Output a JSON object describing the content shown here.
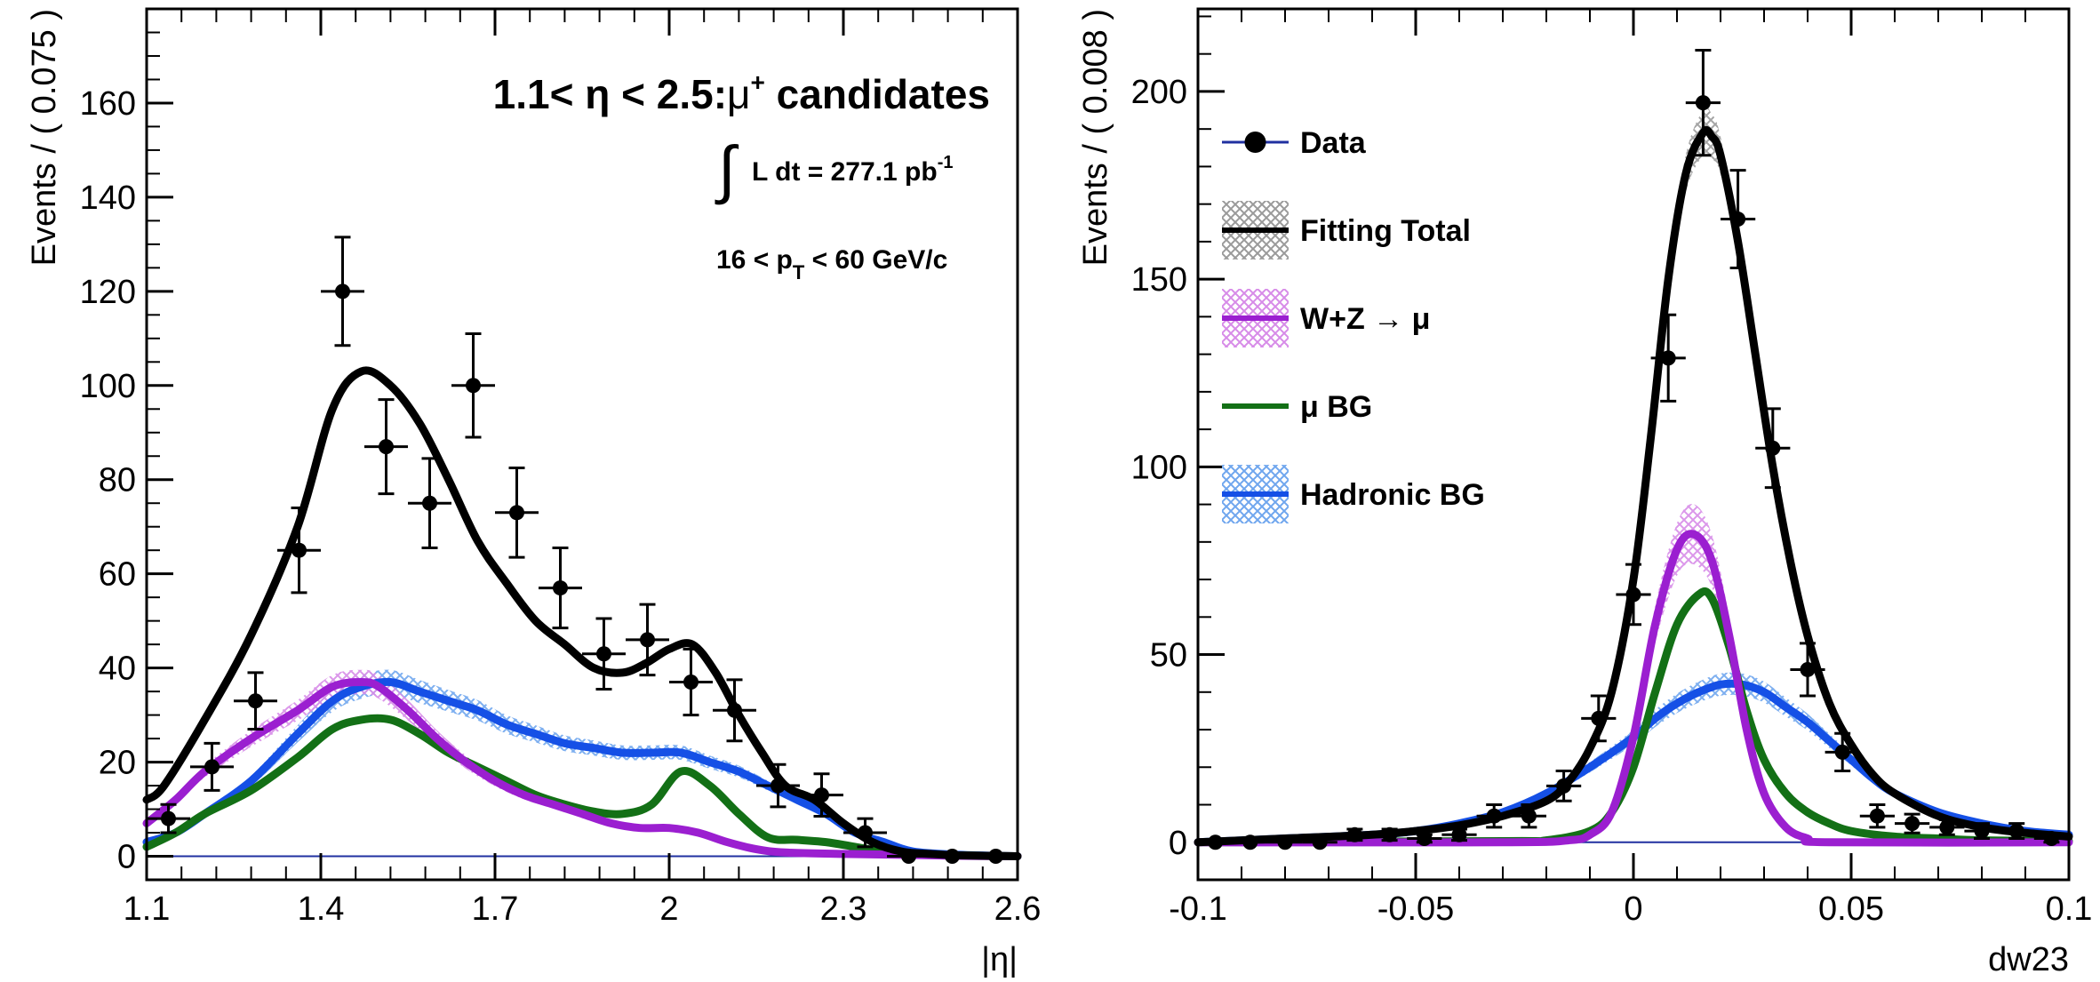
{
  "colors": {
    "data": "#000000",
    "fitting_total": "#000000",
    "wz": "#9b1fd0",
    "mu_bg": "#137016",
    "hadronic_bg": "#1550e6",
    "hadronic_band": "#6fa6ee",
    "wz_band": "#d78be8",
    "total_band": "#9a9a9a",
    "zero_line": "#2030a0"
  },
  "chart_data": [
    {
      "type": "scatter",
      "panel": "left",
      "xlabel": "|η|",
      "ylabel": "Events / ( 0.075 )",
      "xlim": [
        1.1,
        2.6
      ],
      "ylim": [
        -5,
        180
      ],
      "x_ticks": [
        1.1,
        1.4,
        1.7,
        2.0,
        2.3,
        2.6
      ],
      "x_tick_labels": [
        "1.1",
        "1.4",
        "1.7",
        "2",
        "2.3",
        "2.6"
      ],
      "y_ticks": [
        0,
        20,
        40,
        60,
        80,
        100,
        120,
        140,
        160
      ],
      "y_tick_labels": [
        "0",
        "20",
        "40",
        "60",
        "80",
        "100",
        "120",
        "140",
        "160"
      ],
      "annotations": {
        "title_prefix": "1.1< η < 2.5:",
        "title_mu": "μ",
        "title_sup": "+",
        "title_suffix": " candidates",
        "integral": "∫",
        "lumi_text": "L dt = 277.1 pb",
        "lumi_sup": "-1",
        "pt_prefix": "16 < p",
        "pt_sub": "T",
        "pt_suffix": " < 60 GeV/c"
      },
      "bin_half_width": 0.0375,
      "data": {
        "x": [
          1.1375,
          1.2125,
          1.2875,
          1.3625,
          1.4375,
          1.5125,
          1.5875,
          1.6625,
          1.7375,
          1.8125,
          1.8875,
          1.9625,
          2.0375,
          2.1125,
          2.1875,
          2.2625,
          2.3375,
          2.4125,
          2.4875,
          2.5625
        ],
        "y": [
          8,
          19,
          33,
          65,
          120,
          87,
          75,
          100,
          73,
          57,
          43,
          46,
          37,
          31,
          15,
          13,
          5,
          0,
          0,
          0
        ],
        "err": [
          3,
          5,
          6,
          9,
          11.5,
          10,
          9.5,
          11,
          9.5,
          8.5,
          7.5,
          7.5,
          7,
          6.5,
          4.5,
          4.5,
          3,
          0,
          0,
          0
        ]
      },
      "curves": [
        {
          "key": "fitting_total",
          "x": [
            1.1,
            1.13,
            1.2,
            1.28,
            1.36,
            1.42,
            1.47,
            1.52,
            1.57,
            1.62,
            1.67,
            1.72,
            1.77,
            1.82,
            1.87,
            1.92,
            1.96,
            2.0,
            2.04,
            2.08,
            2.12,
            2.16,
            2.2,
            2.25,
            2.3,
            2.35,
            2.4,
            2.45,
            2.5,
            2.6
          ],
          "y": [
            12,
            15,
            29,
            47,
            70,
            95,
            103,
            100,
            92,
            80,
            67,
            58,
            50,
            45,
            40,
            39,
            41,
            44,
            45,
            39,
            30,
            22,
            15,
            12,
            7,
            3,
            1,
            0.5,
            0.2,
            0
          ]
        },
        {
          "key": "hadronic_bg",
          "x": [
            1.1,
            1.15,
            1.2,
            1.28,
            1.36,
            1.42,
            1.47,
            1.52,
            1.57,
            1.62,
            1.67,
            1.72,
            1.77,
            1.82,
            1.87,
            1.92,
            1.97,
            2.02,
            2.07,
            2.12,
            2.17,
            2.22,
            2.27,
            2.32,
            2.37,
            2.42,
            2.5,
            2.6
          ],
          "y": [
            3,
            5,
            9,
            16,
            26,
            33,
            36,
            37,
            35,
            33,
            31,
            28,
            26,
            24,
            23,
            22,
            22,
            22,
            20,
            18,
            15,
            12,
            9,
            5,
            3,
            1,
            0.3,
            0
          ]
        },
        {
          "key": "wz",
          "x": [
            1.1,
            1.15,
            1.2,
            1.28,
            1.36,
            1.42,
            1.47,
            1.5,
            1.55,
            1.6,
            1.65,
            1.7,
            1.75,
            1.8,
            1.85,
            1.9,
            1.95,
            2.0,
            2.05,
            2.1,
            2.15,
            2.2,
            2.3,
            2.4,
            2.5,
            2.6
          ],
          "y": [
            7,
            12,
            18,
            25,
            31,
            36,
            37,
            36,
            31,
            25,
            20,
            16,
            13,
            11,
            9,
            7,
            6,
            6,
            5,
            3,
            1.5,
            0.8,
            0.5,
            0.3,
            0.1,
            0
          ]
        },
        {
          "key": "mu_bg",
          "x": [
            1.1,
            1.15,
            1.2,
            1.28,
            1.36,
            1.42,
            1.47,
            1.52,
            1.57,
            1.62,
            1.67,
            1.72,
            1.77,
            1.82,
            1.87,
            1.92,
            1.97,
            2.02,
            2.07,
            2.12,
            2.17,
            2.22,
            2.27,
            2.32,
            2.37,
            2.42,
            2.5,
            2.6
          ],
          "y": [
            2,
            5,
            9,
            14,
            21,
            27,
            29,
            29,
            26,
            22,
            19,
            16,
            13,
            11,
            9.5,
            9,
            11,
            18,
            15,
            9,
            4,
            3.5,
            3,
            2,
            1,
            0.5,
            0.2,
            0
          ]
        }
      ]
    },
    {
      "type": "scatter",
      "panel": "right",
      "xlabel": "dw23",
      "ylabel": "Events / ( 0.008 )",
      "xlim": [
        -0.1,
        0.1
      ],
      "ylim": [
        -10,
        222
      ],
      "x_ticks": [
        -0.1,
        -0.05,
        0,
        0.05,
        0.1
      ],
      "x_tick_labels": [
        "-0.1",
        "-0.05",
        "0",
        "0.05",
        "0.1"
      ],
      "y_ticks": [
        0,
        50,
        100,
        150,
        200
      ],
      "y_tick_labels": [
        "0",
        "50",
        "100",
        "150",
        "200"
      ],
      "bin_half_width": 0.004,
      "legend": [
        {
          "key": "data",
          "label": "Data",
          "style": "marker"
        },
        {
          "key": "fitting_total",
          "label": "Fitting Total",
          "style": "band"
        },
        {
          "key": "wz",
          "label": "W+Z → μ",
          "style": "band"
        },
        {
          "key": "mu_bg",
          "label": "μ BG",
          "style": "line"
        },
        {
          "key": "hadronic_bg",
          "label": "Hadronic BG",
          "style": "band"
        }
      ],
      "data": {
        "x": [
          -0.096,
          -0.088,
          -0.08,
          -0.072,
          -0.064,
          -0.056,
          -0.048,
          -0.04,
          -0.032,
          -0.024,
          -0.016,
          -0.008,
          0.0,
          0.008,
          0.016,
          0.024,
          0.032,
          0.04,
          0.048,
          0.056,
          0.064,
          0.072,
          0.08,
          0.088,
          0.096
        ],
        "y": [
          0,
          0,
          0,
          0,
          2,
          2,
          1,
          2,
          7,
          7,
          15,
          33,
          66,
          129,
          197,
          166,
          105,
          46,
          24,
          7,
          5,
          4,
          3,
          3,
          1
        ],
        "err": [
          0,
          0,
          0,
          0,
          1.5,
          1.5,
          1,
          1.5,
          3,
          3,
          4,
          6,
          8,
          11.5,
          14,
          13,
          10.5,
          7,
          5,
          3,
          2.5,
          2,
          2,
          2,
          1
        ]
      },
      "curves": [
        {
          "key": "fitting_total",
          "x": [
            -0.1,
            -0.08,
            -0.06,
            -0.05,
            -0.04,
            -0.03,
            -0.02,
            -0.015,
            -0.01,
            -0.005,
            0.0,
            0.004,
            0.008,
            0.012,
            0.016,
            0.018,
            0.02,
            0.024,
            0.028,
            0.032,
            0.036,
            0.04,
            0.045,
            0.05,
            0.055,
            0.06,
            0.07,
            0.08,
            0.09,
            0.1
          ],
          "y": [
            0,
            1,
            2,
            3,
            4.5,
            7,
            11,
            16,
            25,
            40,
            70,
            108,
            150,
            178,
            189,
            188,
            183,
            160,
            130,
            100,
            75,
            55,
            37,
            26,
            18,
            13,
            7,
            4,
            2.5,
            1.5
          ]
        },
        {
          "key": "wz",
          "x": [
            -0.1,
            -0.03,
            -0.015,
            -0.01,
            -0.005,
            0.0,
            0.005,
            0.01,
            0.014,
            0.018,
            0.022,
            0.026,
            0.03,
            0.035,
            0.04,
            0.045,
            0.1
          ],
          "y": [
            0,
            0,
            0.5,
            2,
            8,
            28,
            58,
            78,
            82,
            75,
            55,
            30,
            13,
            4,
            1,
            0,
            0
          ]
        },
        {
          "key": "mu_bg",
          "x": [
            -0.1,
            -0.03,
            -0.02,
            -0.01,
            -0.005,
            0.0,
            0.005,
            0.01,
            0.015,
            0.018,
            0.022,
            0.026,
            0.03,
            0.035,
            0.04,
            0.045,
            0.05,
            0.06,
            0.07,
            0.08,
            0.1
          ],
          "y": [
            0,
            0.3,
            0.5,
            3,
            8,
            20,
            40,
            58,
            66,
            65,
            52,
            35,
            22,
            13,
            8,
            5,
            3,
            1.5,
            1,
            0.5,
            0.3
          ]
        },
        {
          "key": "hadronic_bg",
          "x": [
            -0.1,
            -0.08,
            -0.06,
            -0.05,
            -0.04,
            -0.03,
            -0.02,
            -0.01,
            0.0,
            0.005,
            0.01,
            0.015,
            0.02,
            0.025,
            0.03,
            0.035,
            0.04,
            0.045,
            0.05,
            0.055,
            0.06,
            0.07,
            0.08,
            0.09,
            0.1
          ],
          "y": [
            0,
            1,
            2,
            3,
            5,
            8,
            13,
            20,
            28,
            33,
            37,
            40,
            42,
            42,
            40,
            36,
            32,
            27,
            22,
            17,
            13,
            8,
            5,
            3,
            2
          ]
        }
      ],
      "bands": [
        {
          "key": "fitting_total",
          "x": [
            0.008,
            0.012,
            0.016,
            0.018,
            0.02,
            0.024
          ],
          "y": [
            150,
            178,
            189,
            188,
            183,
            160
          ],
          "half": [
            3,
            5,
            6,
            6,
            5,
            3
          ]
        },
        {
          "key": "wz",
          "x": [
            0.0,
            0.005,
            0.01,
            0.014,
            0.018,
            0.022,
            0.026,
            0.03
          ],
          "y": [
            28,
            58,
            78,
            82,
            75,
            55,
            30,
            13
          ],
          "half": [
            2,
            5,
            7,
            8,
            7,
            5,
            3,
            1
          ]
        }
      ]
    }
  ]
}
